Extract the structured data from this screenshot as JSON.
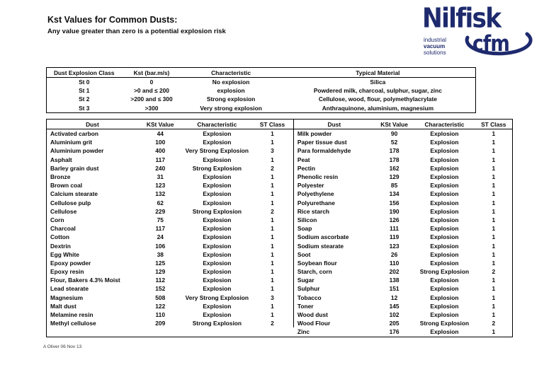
{
  "page": {
    "title": "Kst Values for Common Dusts:",
    "subtitle": "Any value greater than zero is a potential explosion risk",
    "footer": "A Oliver  06 Nov 13"
  },
  "logo": {
    "brand": "Nilfisk",
    "tagline_line1": "industrial",
    "tagline_line2": "vacuum",
    "tagline_line3": "solutions",
    "sub_brand": "cfm",
    "color": "#1e2a6d"
  },
  "class_table": {
    "headers": [
      "Dust Explosion Class",
      "Kst (bar.m/s)",
      "Characteristic",
      "Typical Material"
    ],
    "rows": [
      [
        "St 0",
        "0",
        "No explosion",
        "Silica"
      ],
      [
        "St 1",
        ">0 and ≤ 200",
        "explosion",
        "Powdered milk, charcoal, sulphur, sugar, zinc"
      ],
      [
        "St 2",
        ">200 and ≤ 300",
        "Strong explosion",
        "Cellulose, wood, flour, polymethylacrylate"
      ],
      [
        "St 3",
        ">300",
        "Very strong explosion",
        "Anthraquinone, aluminium, magnesium"
      ]
    ]
  },
  "dust_table": {
    "headers": [
      "Dust",
      "KSt Value",
      "Characteristic",
      "ST Class"
    ],
    "left_rows": [
      [
        "Activated carbon",
        "44",
        "Explosion",
        "1"
      ],
      [
        "Aluminium grit",
        "100",
        "Explosion",
        "1"
      ],
      [
        "Aluminium powder",
        "400",
        "Very Strong Explosion",
        "3"
      ],
      [
        "Asphalt",
        "117",
        "Explosion",
        "1"
      ],
      [
        "Barley grain dust",
        "240",
        "Strong Explosion",
        "2"
      ],
      [
        "Bronze",
        "31",
        "Explosion",
        "1"
      ],
      [
        "Brown coal",
        "123",
        "Explosion",
        "1"
      ],
      [
        "Calcium stearate",
        "132",
        "Explosion",
        "1"
      ],
      [
        "Cellulose pulp",
        "62",
        "Explosion",
        "1"
      ],
      [
        "Cellulose",
        "229",
        "Strong Explosion",
        "2"
      ],
      [
        "Corn",
        "75",
        "Explosion",
        "1"
      ],
      [
        "Charcoal",
        "117",
        "Explosion",
        "1"
      ],
      [
        "Cotton",
        "24",
        "Explosion",
        "1"
      ],
      [
        "Dextrin",
        "106",
        "Explosion",
        "1"
      ],
      [
        "Egg White",
        "38",
        "Explosion",
        "1"
      ],
      [
        "Epoxy powder",
        "125",
        "Explosion",
        "1"
      ],
      [
        "Epoxy resin",
        "129",
        "Explosion",
        "1"
      ],
      [
        "Flour, Bakers 4.3% Moist",
        "112",
        "Explosion",
        "1"
      ],
      [
        "Lead stearate",
        "152",
        "Explosion",
        "1"
      ],
      [
        "Magnesium",
        "508",
        "Very Strong Explosion",
        "3"
      ],
      [
        "Malt dust",
        "122",
        "Explosion",
        "1"
      ],
      [
        "Melamine resin",
        "110",
        "Explosion",
        "1"
      ],
      [
        "Methyl cellulose",
        "209",
        "Strong Explosion",
        "2"
      ]
    ],
    "right_rows": [
      [
        "Milk powder",
        "90",
        "Explosion",
        "1"
      ],
      [
        "Paper tissue dust",
        "52",
        "Explosion",
        "1"
      ],
      [
        "Para formaldehyde",
        "178",
        "Explosion",
        "1"
      ],
      [
        "Peat",
        "178",
        "Explosion",
        "1"
      ],
      [
        "Pectin",
        "162",
        "Explosion",
        "1"
      ],
      [
        "Phenolic resin",
        "129",
        "Explosion",
        "1"
      ],
      [
        "Polyester",
        "85",
        "Explosion",
        "1"
      ],
      [
        "Polyethylene",
        "134",
        "Explosion",
        "1"
      ],
      [
        "Polyurethane",
        "156",
        "Explosion",
        "1"
      ],
      [
        "Rice starch",
        "190",
        "Explosion",
        "1"
      ],
      [
        "Silicon",
        "126",
        "Explosion",
        "1"
      ],
      [
        "Soap",
        "111",
        "Explosion",
        "1"
      ],
      [
        "Sodium ascorbate",
        "119",
        "Explosion",
        "1"
      ],
      [
        "Sodium stearate",
        "123",
        "Explosion",
        "1"
      ],
      [
        "Soot",
        "26",
        "Explosion",
        "1"
      ],
      [
        "Soybean flour",
        "110",
        "Explosion",
        "1"
      ],
      [
        "Starch, corn",
        "202",
        "Strong Explosion",
        "2"
      ],
      [
        "Sugar",
        "138",
        "Explosion",
        "1"
      ],
      [
        "Sulphur",
        "151",
        "Explosion",
        "1"
      ],
      [
        "Tobacco",
        "12",
        "Explosion",
        "1"
      ],
      [
        "Toner",
        "145",
        "Explosion",
        "1"
      ],
      [
        "Wood dust",
        "102",
        "Explosion",
        "1"
      ],
      [
        "Wood Flour",
        "205",
        "Strong Explosion",
        "2"
      ],
      [
        "Zinc",
        "176",
        "Explosion",
        "1"
      ]
    ]
  }
}
